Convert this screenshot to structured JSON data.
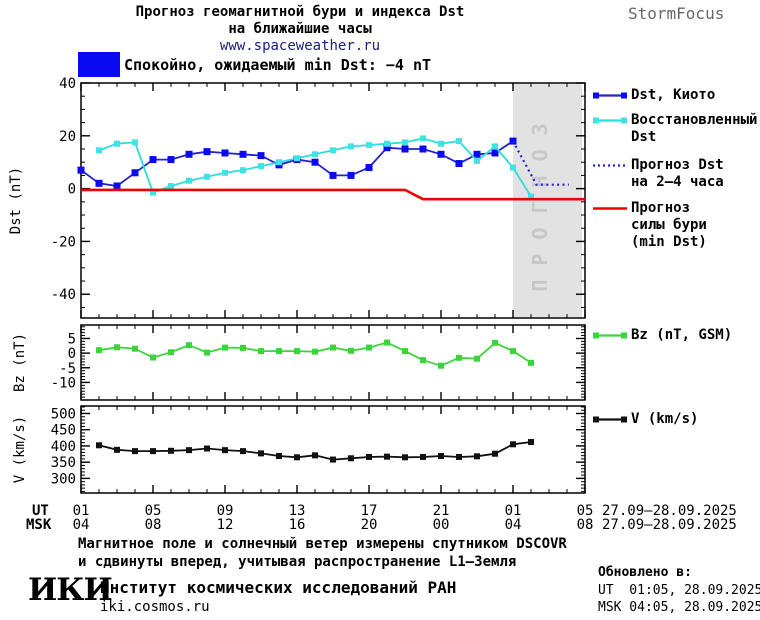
{
  "header": {
    "title_line1": "Прогноз геомагнитной бури и индекса Dst",
    "title_line2": "на ближайшие часы",
    "website": "www.spaceweather.ru",
    "brand": "StormFocus",
    "status_label": "Спокойно, ожидаемый min Dst: −4 nT",
    "status_color": "#0909f2"
  },
  "chart_data": [
    {
      "type": "line",
      "title": "Прогноз Dst",
      "ylabel": "Dst (nT)",
      "ylim": [
        -49,
        40
      ],
      "yticks": [
        40,
        20,
        0,
        -20,
        -40
      ],
      "x_hours": {
        "start": 1,
        "end": 29,
        "unit": "hour UT starting 01:00 27.09"
      },
      "grid": false,
      "forecast_region": {
        "start_hour": 25,
        "end_hour": 29,
        "label": "ПРОГНОЗ"
      },
      "series": [
        {
          "id": "dst-kyoto",
          "name": "Dst, Киото",
          "legend_lines": [
            "Dst, Киото"
          ],
          "color": "#2323c8",
          "marker_color": "#0909f2",
          "marker": 7,
          "swatch": "squares",
          "start_hour": 1,
          "values": [
            7,
            2,
            1,
            6,
            11,
            11,
            13,
            14,
            13.5,
            13,
            12.5,
            9,
            11,
            10,
            5,
            5,
            8,
            15.5,
            15,
            15,
            13,
            9.5,
            13,
            13.5,
            18
          ]
        },
        {
          "id": "dst-restored",
          "name": "Восстановленный Dst",
          "legend_lines": [
            "Восстановленный",
            "Dst"
          ],
          "color": "#2edcdc",
          "marker_color": "#3ee4e4",
          "marker": 6,
          "swatch": "squares",
          "start_hour": 2,
          "values": [
            14.5,
            17,
            17.5,
            -1.5,
            1,
            3,
            4.5,
            6,
            7,
            8.5,
            10,
            11.5,
            13,
            14.5,
            16,
            16.5,
            17,
            17.5,
            19,
            17,
            18,
            10.5,
            16,
            8,
            -3
          ]
        },
        {
          "id": "dst-forecast",
          "name": "Прогноз Dst на 2–4 часа",
          "legend_lines": [
            "Прогноз Dst",
            "на 2–4 часа"
          ],
          "color": "#2020dd",
          "style": "dotted",
          "swatch": "dotted",
          "points": [
            [
              25,
              18
            ],
            [
              26.3,
              1.5
            ],
            [
              28.1,
              1.5
            ]
          ]
        },
        {
          "id": "storm-forecast",
          "name": "Прогноз силы бури (min Dst)",
          "legend_lines": [
            "Прогноз",
            "силы бури",
            "(min Dst)"
          ],
          "color": "#f00000",
          "width": 2.6,
          "swatch": "line",
          "points": [
            [
              1,
              -0.5
            ],
            [
              19,
              -0.5
            ],
            [
              20,
              -4
            ],
            [
              29,
              -4
            ]
          ]
        }
      ]
    },
    {
      "type": "line",
      "ylabel": "Bz (nT)",
      "ylim": [
        -16,
        9.6
      ],
      "yticks": [
        5,
        0,
        -5,
        -10
      ],
      "series": [
        {
          "id": "bz",
          "name": "Bz (nT, GSM)",
          "legend_lines": [
            "Bz (nT, GSM)"
          ],
          "color": "#3cd43c",
          "marker": 6,
          "swatch": "squares",
          "start_hour": 2,
          "values": [
            1,
            2,
            1.5,
            -1.5,
            0.3,
            2.7,
            0.2,
            1.9,
            1.8,
            0.7,
            0.7,
            0.7,
            0.5,
            1.9,
            0.8,
            1.9,
            3.6,
            0.7,
            -2.4,
            -4.3,
            -1.6,
            -1.9,
            3.5,
            0.7,
            -3.3
          ]
        }
      ]
    },
    {
      "type": "line",
      "ylabel": "V (km/s)",
      "ylim": [
        255,
        523
      ],
      "yticks": [
        500,
        450,
        400,
        350,
        300
      ],
      "series": [
        {
          "id": "v",
          "name": "V (km/s)",
          "legend_lines": [
            "V (km/s)"
          ],
          "color": "#111111",
          "marker": 6,
          "swatch": "squares",
          "start_hour": 2,
          "values": [
            402,
            388,
            384,
            384,
            385,
            387,
            392,
            387,
            384,
            377,
            369,
            365,
            371,
            358,
            362,
            366,
            367,
            365,
            366,
            369,
            366,
            368,
            376,
            405,
            412
          ]
        }
      ]
    }
  ],
  "axis_bottom": {
    "ut_label": "UT",
    "msk_label": "MSK",
    "ut_hours": [
      "01",
      "05",
      "09",
      "13",
      "17",
      "21",
      "01",
      "05"
    ],
    "msk_hours": [
      "04",
      "08",
      "12",
      "16",
      "20",
      "00",
      "04",
      "08"
    ],
    "date_ut": "27.09–28.09.2025",
    "date_msk": "27.09–28.09.2025"
  },
  "footer": {
    "note_line1": "Магнитное поле и солнечный ветер измерены спутником DSCOVR",
    "note_line2": "и сдвинуты вперед, учитывая распространение L1–Земля",
    "logo": "ИКИ",
    "institute": "Институт космических исследований РАН",
    "institute_site": "iki.cosmos.ru",
    "updated_label": "Обновлено в:",
    "updated_ut": "UT  01:05, 28.09.2025",
    "updated_msk": "MSK 04:05, 28.09.2025"
  }
}
